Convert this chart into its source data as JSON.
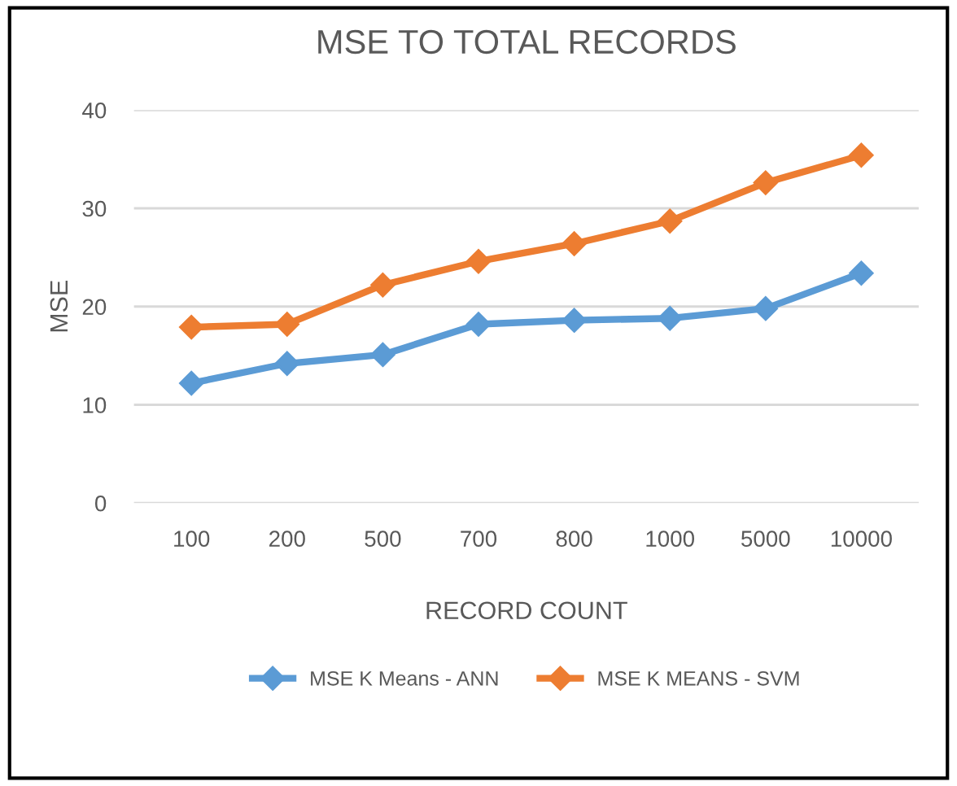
{
  "chart_data": {
    "type": "line",
    "title": "MSE TO TOTAL RECORDS",
    "xlabel": "RECORD COUNT",
    "ylabel": "MSE",
    "categories": [
      "100",
      "200",
      "500",
      "700",
      "800",
      "1000",
      "5000",
      "10000"
    ],
    "series": [
      {
        "name": "MSE K Means - ANN",
        "color": "#5b9bd5",
        "values": [
          12.2,
          14.2,
          15.1,
          18.2,
          18.6,
          18.8,
          19.8,
          23.4
        ]
      },
      {
        "name": "MSE K MEANS - SVM",
        "color": "#ed7d31",
        "values": [
          17.9,
          18.2,
          22.2,
          24.6,
          26.4,
          28.7,
          32.6,
          35.4
        ]
      }
    ],
    "ylim": [
      0,
      40
    ],
    "yticks": [
      0,
      10,
      20,
      30,
      40
    ],
    "grid": "y",
    "legend": "bottom",
    "marker": "diamond",
    "line_style": "solid"
  }
}
